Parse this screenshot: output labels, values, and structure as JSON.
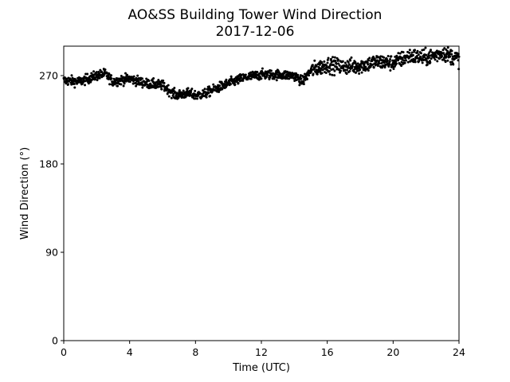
{
  "chart_data": {
    "type": "scatter",
    "title": "AO&SS Building Tower Wind Direction",
    "subtitle": "2017-12-06",
    "xlabel": "Time (UTC)",
    "ylabel": "Wind Direction (°)",
    "xlim": [
      0,
      24
    ],
    "ylim": [
      0,
      300
    ],
    "xticks": [
      0,
      4,
      8,
      12,
      16,
      20,
      24
    ],
    "yticks": [
      0,
      90,
      180,
      270
    ],
    "grid": false,
    "marker_color": "#000000",
    "series": [
      {
        "trend_hours": [
          0,
          1,
          2,
          2.5,
          3,
          4,
          5,
          6,
          6.8,
          7.5,
          8,
          8.5,
          9,
          10,
          11,
          12,
          13,
          14,
          14.5,
          15,
          16,
          17,
          18,
          19,
          20,
          21,
          22,
          23,
          24
        ],
        "trend_degrees": [
          265,
          264,
          270,
          272,
          264,
          267,
          262,
          260,
          250,
          252,
          250,
          251,
          255,
          262,
          268,
          271,
          271,
          270,
          264,
          275,
          281,
          279,
          280,
          284,
          283,
          290,
          288,
          293,
          287
        ],
        "spread_degrees": 5,
        "samples_per_hour": 60,
        "values": []
      }
    ]
  }
}
